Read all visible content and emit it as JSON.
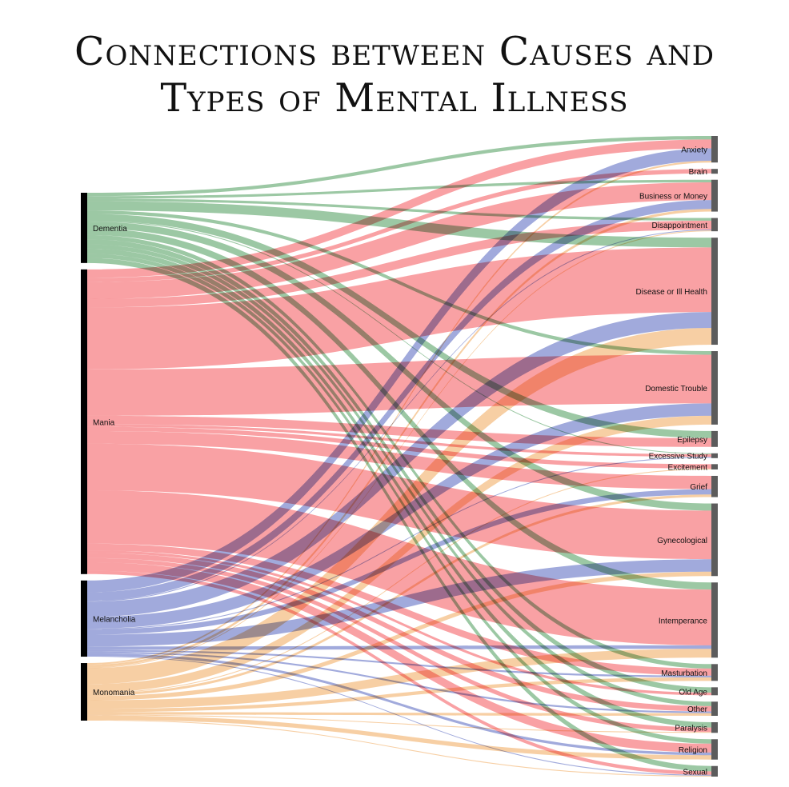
{
  "chart_data": {
    "type": "sankey",
    "title_lines": [
      "Connections between Causes and",
      "Types of Mental Illness"
    ],
    "colors": {
      "Dementia": "#80b88a",
      "Mania": "#f7868a",
      "Melancholia": "#8792d2",
      "Monomania": "#f5c28a",
      "source_bar": "#000000",
      "target_bar": "#5c5c5c"
    },
    "sources": [
      "Dementia",
      "Mania",
      "Melancholia",
      "Monomania"
    ],
    "targets": [
      "Anxiety",
      "Brain",
      "Business or Money",
      "Disappointment",
      "Disease or Ill Health",
      "Domestic Trouble",
      "Epilepsy",
      "Excessive Study",
      "Excitement",
      "Grief",
      "Gynecological",
      "Intemperance",
      "Masturbation",
      "Old Age",
      "Other",
      "Paralysis",
      "Religion",
      "Sexual"
    ],
    "links": [
      {
        "source": "Dementia",
        "target": "Anxiety",
        "value": 4
      },
      {
        "source": "Dementia",
        "target": "Business or Money",
        "value": 3
      },
      {
        "source": "Dementia",
        "target": "Disappointment",
        "value": 3
      },
      {
        "source": "Dementia",
        "target": "Disease or Ill Health",
        "value": 11
      },
      {
        "source": "Dementia",
        "target": "Domestic Trouble",
        "value": 4
      },
      {
        "source": "Dementia",
        "target": "Epilepsy",
        "value": 8
      },
      {
        "source": "Dementia",
        "target": "Excessive Study",
        "value": 1
      },
      {
        "source": "Dementia",
        "target": "Gynecological",
        "value": 8
      },
      {
        "source": "Dementia",
        "target": "Intemperance",
        "value": 8
      },
      {
        "source": "Dementia",
        "target": "Masturbation",
        "value": 5
      },
      {
        "source": "Dementia",
        "target": "Old Age",
        "value": 6
      },
      {
        "source": "Dementia",
        "target": "Other",
        "value": 5
      },
      {
        "source": "Dementia",
        "target": "Paralysis",
        "value": 6
      },
      {
        "source": "Dementia",
        "target": "Religion",
        "value": 5
      },
      {
        "source": "Dementia",
        "target": "Sexual",
        "value": 6
      },
      {
        "source": "Mania",
        "target": "Anxiety",
        "value": 10
      },
      {
        "source": "Mania",
        "target": "Brain",
        "value": 5
      },
      {
        "source": "Mania",
        "target": "Business or Money",
        "value": 20
      },
      {
        "source": "Mania",
        "target": "Disappointment",
        "value": 10
      },
      {
        "source": "Mania",
        "target": "Disease or Ill Health",
        "value": 73
      },
      {
        "source": "Mania",
        "target": "Domestic Trouble",
        "value": 55
      },
      {
        "source": "Mania",
        "target": "Epilepsy",
        "value": 10
      },
      {
        "source": "Mania",
        "target": "Excessive Study",
        "value": 3
      },
      {
        "source": "Mania",
        "target": "Excitement",
        "value": 5
      },
      {
        "source": "Mania",
        "target": "Grief",
        "value": 15
      },
      {
        "source": "Mania",
        "target": "Gynecological",
        "value": 55
      },
      {
        "source": "Mania",
        "target": "Intemperance",
        "value": 63
      },
      {
        "source": "Mania",
        "target": "Masturbation",
        "value": 8
      },
      {
        "source": "Mania",
        "target": "Old Age",
        "value": 3
      },
      {
        "source": "Mania",
        "target": "Other",
        "value": 6
      },
      {
        "source": "Mania",
        "target": "Paralysis",
        "value": 5
      },
      {
        "source": "Mania",
        "target": "Religion",
        "value": 10
      },
      {
        "source": "Mania",
        "target": "Sexual",
        "value": 4
      },
      {
        "source": "Melancholia",
        "target": "Anxiety",
        "value": 14
      },
      {
        "source": "Melancholia",
        "target": "Business or Money",
        "value": 10
      },
      {
        "source": "Melancholia",
        "target": "Disappointment",
        "value": 1
      },
      {
        "source": "Melancholia",
        "target": "Disease or Ill Health",
        "value": 18
      },
      {
        "source": "Melancholia",
        "target": "Domestic Trouble",
        "value": 14
      },
      {
        "source": "Melancholia",
        "target": "Excessive Study",
        "value": 1
      },
      {
        "source": "Melancholia",
        "target": "Grief",
        "value": 6
      },
      {
        "source": "Melancholia",
        "target": "Gynecological",
        "value": 14
      },
      {
        "source": "Melancholia",
        "target": "Intemperance",
        "value": 4
      },
      {
        "source": "Melancholia",
        "target": "Masturbation",
        "value": 2
      },
      {
        "source": "Melancholia",
        "target": "Other",
        "value": 2
      },
      {
        "source": "Melancholia",
        "target": "Religion",
        "value": 3
      },
      {
        "source": "Melancholia",
        "target": "Sexual",
        "value": 1
      },
      {
        "source": "Monomania",
        "target": "Anxiety",
        "value": 2
      },
      {
        "source": "Monomania",
        "target": "Business or Money",
        "value": 3
      },
      {
        "source": "Monomania",
        "target": "Disappointment",
        "value": 1
      },
      {
        "source": "Monomania",
        "target": "Disease or Ill Health",
        "value": 19
      },
      {
        "source": "Monomania",
        "target": "Domestic Trouble",
        "value": 10
      },
      {
        "source": "Monomania",
        "target": "Excitement",
        "value": 1
      },
      {
        "source": "Monomania",
        "target": "Grief",
        "value": 3
      },
      {
        "source": "Monomania",
        "target": "Gynecological",
        "value": 5
      },
      {
        "source": "Monomania",
        "target": "Intemperance",
        "value": 10
      },
      {
        "source": "Monomania",
        "target": "Masturbation",
        "value": 4
      },
      {
        "source": "Monomania",
        "target": "Other",
        "value": 3
      },
      {
        "source": "Monomania",
        "target": "Paralysis",
        "value": 1
      },
      {
        "source": "Monomania",
        "target": "Religion",
        "value": 5
      },
      {
        "source": "Monomania",
        "target": "Sexual",
        "value": 1
      }
    ]
  }
}
